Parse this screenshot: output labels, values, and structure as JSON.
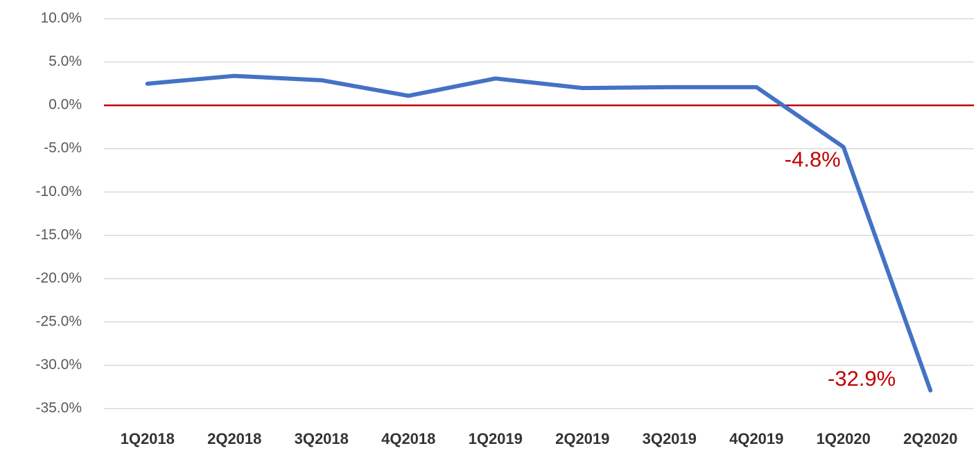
{
  "chart_data": {
    "type": "line",
    "categories": [
      "1Q2018",
      "2Q2018",
      "3Q2018",
      "4Q2018",
      "1Q2019",
      "2Q2019",
      "3Q2019",
      "4Q2019",
      "1Q2020",
      "2Q2020"
    ],
    "series": [
      {
        "name": null,
        "color": "#4472c4",
        "values": [
          2.5,
          3.4,
          2.9,
          1.1,
          3.1,
          2.0,
          2.1,
          2.1,
          -4.8,
          -32.9
        ],
        "value_labels": [
          null,
          null,
          null,
          null,
          null,
          null,
          null,
          null,
          "-4.8%",
          "-32.9%"
        ]
      }
    ],
    "ylim": [
      -35,
      10
    ],
    "yticks": [
      {
        "value": -35,
        "label": "-35.0%"
      },
      {
        "value": -30,
        "label": "-30.0%"
      },
      {
        "value": -25,
        "label": "-25.0%"
      },
      {
        "value": -20,
        "label": "-20.0%"
      },
      {
        "value": -15,
        "label": "-15.0%"
      },
      {
        "value": -10,
        "label": "-10.0%"
      },
      {
        "value": -5,
        "label": "-5.0%"
      },
      {
        "value": 0,
        "label": "0.0%"
      },
      {
        "value": 5,
        "label": "5.0%"
      },
      {
        "value": 10,
        "label": "10.0%"
      }
    ],
    "grid": true,
    "grid_color": "#d9d9d9",
    "zero_line_color": "#c00000",
    "label_color": "#c00000"
  }
}
